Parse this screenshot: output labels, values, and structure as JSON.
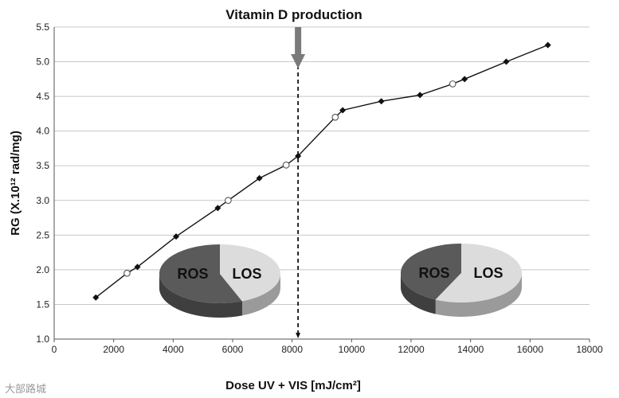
{
  "chart_data": {
    "type": "line",
    "title": "Vitamin D production",
    "xlabel": "Dose UV + VIS [mJ/cm²]",
    "ylabel": "RG (X.10¹² rad/mg)",
    "xlim": [
      0,
      18000
    ],
    "ylim": [
      1.0,
      5.5
    ],
    "xticks": [
      0,
      2000,
      4000,
      6000,
      8000,
      10000,
      12000,
      14000,
      16000,
      18000
    ],
    "yticks": [
      "1.0",
      "1.5",
      "2.0",
      "2.5",
      "3.0",
      "3.5",
      "4.0",
      "4.5",
      "5.0",
      "5.5"
    ],
    "grid": "horizontal",
    "series": [
      {
        "marker": "diamond-filled",
        "color": "#111111",
        "points": [
          [
            1400,
            1.6
          ],
          [
            2800,
            2.04
          ],
          [
            4100,
            2.48
          ],
          [
            5500,
            2.89
          ],
          [
            6900,
            3.32
          ],
          [
            8200,
            3.64
          ],
          [
            9700,
            4.3
          ],
          [
            11000,
            4.43
          ],
          [
            12300,
            4.52
          ],
          [
            13800,
            4.75
          ],
          [
            15200,
            5.0
          ],
          [
            16600,
            5.24
          ]
        ]
      },
      {
        "marker": "circle-open",
        "color": "#111111",
        "points": [
          [
            2450,
            1.95
          ],
          [
            5850,
            3.0
          ],
          [
            7800,
            3.51
          ],
          [
            9450,
            4.2
          ],
          [
            13400,
            4.68
          ]
        ]
      }
    ],
    "annotation": {
      "x": 8200,
      "style": "dashed vertical line with downward arrow",
      "arrow_color": "#7a7a7a"
    },
    "insets": [
      {
        "type": "pie",
        "labels": [
          "ROS",
          "LOS"
        ],
        "values": [
          0.56,
          0.44
        ],
        "colors": [
          "#5a5a5a",
          "#dcdcdc"
        ]
      },
      {
        "type": "pie",
        "labels": [
          "ROS",
          "LOS"
        ],
        "values": [
          0.43,
          0.57
        ],
        "colors": [
          "#5a5a5a",
          "#dcdcdc"
        ]
      }
    ]
  },
  "watermark": "大部路城"
}
